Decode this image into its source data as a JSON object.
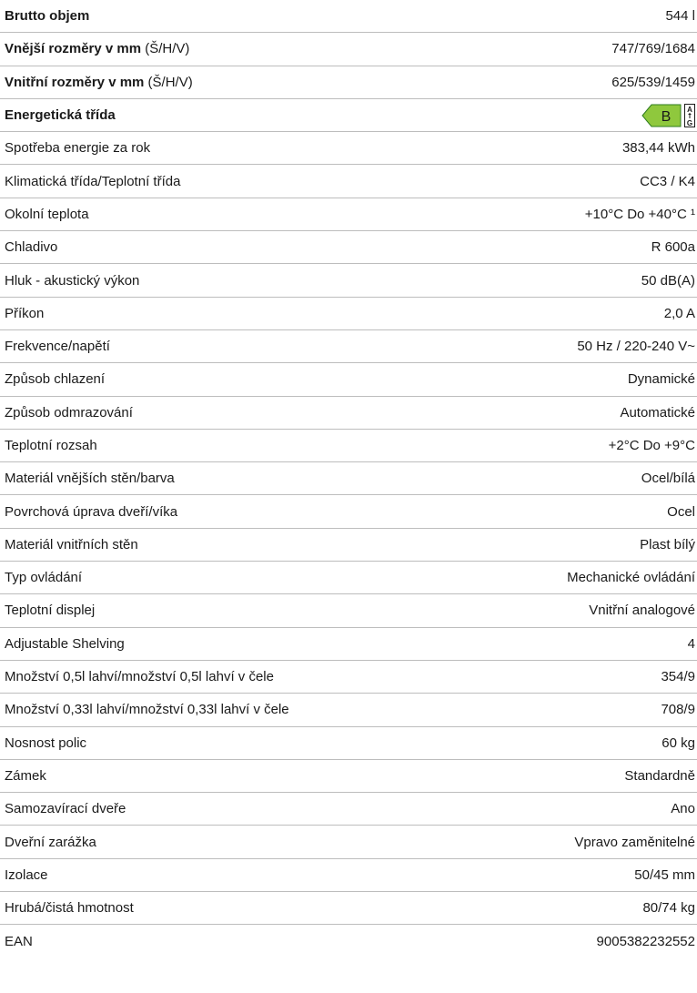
{
  "rows": [
    {
      "label": "Brutto objem",
      "suffix": "",
      "value": "544 l",
      "bold": true
    },
    {
      "label": "Vnější rozměry v mm",
      "suffix": " (Š/H/V)",
      "value": "747/769/1684",
      "bold": true
    },
    {
      "label": "Vnitřní rozměry v mm",
      "suffix": " (Š/H/V)",
      "value": "625/539/1459",
      "bold": true
    },
    {
      "label": "Energetická třída",
      "suffix": "",
      "value": "",
      "bold": true,
      "energy": true
    },
    {
      "label": "Spotřeba energie za rok",
      "suffix": "",
      "value": "383,44 kWh"
    },
    {
      "label": "Klimatická třída/Teplotní třída",
      "suffix": "",
      "value": "CC3 / K4"
    },
    {
      "label": "Okolní teplota",
      "suffix": "",
      "value": "+10°C Do +40°C ¹"
    },
    {
      "label": "Chladivo",
      "suffix": "",
      "value": "R 600a"
    },
    {
      "label": "Hluk - akustický výkon",
      "suffix": "",
      "value": "50 dB(A)"
    },
    {
      "label": "Příkon",
      "suffix": "",
      "value": "2,0 A"
    },
    {
      "label": "Frekvence/napětí",
      "suffix": "",
      "value": "50 Hz / 220-240 V~"
    },
    {
      "label": "Způsob chlazení",
      "suffix": "",
      "value": "Dynamické"
    },
    {
      "label": "Způsob odmrazování",
      "suffix": "",
      "value": "Automatické"
    },
    {
      "label": "Teplotní rozsah",
      "suffix": "",
      "value": "+2°C Do +9°C"
    },
    {
      "label": "Materiál vnějších stěn/barva",
      "suffix": "",
      "value": "Ocel/bílá"
    },
    {
      "label": "Povrchová úprava dveří/víka",
      "suffix": "",
      "value": "Ocel"
    },
    {
      "label": "Materiál vnitřních stěn",
      "suffix": "",
      "value": "Plast bílý"
    },
    {
      "label": "Typ ovládání",
      "suffix": "",
      "value": "Mechanické ovládání"
    },
    {
      "label": "Teplotní displej",
      "suffix": "",
      "value": "Vnitřní analogové"
    },
    {
      "label": "Adjustable Shelving",
      "suffix": "",
      "value": "4"
    },
    {
      "label": "Množství 0,5l lahví/množství 0,5l lahví v čele",
      "suffix": "",
      "value": "354/9"
    },
    {
      "label": "Množství 0,33l lahví/množství 0,33l lahví v čele",
      "suffix": "",
      "value": "708/9"
    },
    {
      "label": "Nosnost polic",
      "suffix": "",
      "value": "60 kg"
    },
    {
      "label": "Zámek",
      "suffix": "",
      "value": "Standardně"
    },
    {
      "label": "Samozavírací dveře",
      "suffix": "",
      "value": "Ano"
    },
    {
      "label": "Dveřní zarážka",
      "suffix": "",
      "value": "Vpravo zaměnitelné"
    },
    {
      "label": "Izolace",
      "suffix": "",
      "value": "50/45 mm"
    },
    {
      "label": "Hrubá/čistá hmotnost",
      "suffix": "",
      "value": "80/74 kg"
    },
    {
      "label": "EAN",
      "suffix": "",
      "value": "9005382232552"
    }
  ],
  "energy_label": {
    "class": "B",
    "scale_top": "A",
    "scale_bottom": "G",
    "color": "#8fc83d"
  }
}
